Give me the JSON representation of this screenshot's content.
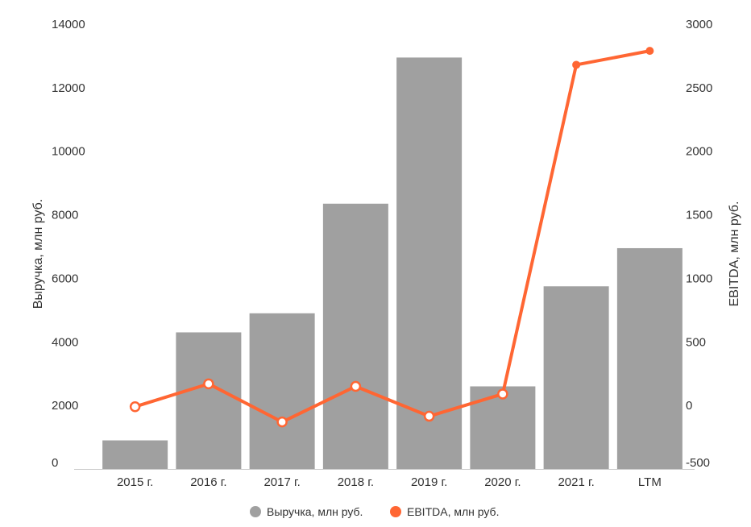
{
  "chart_data": {
    "type": "bar",
    "categories": [
      "2015 г.",
      "2016 г.",
      "2017 г.",
      "2018 г.",
      "2019 г.",
      "2020 г.",
      "2021 г.",
      "LTM"
    ],
    "series": [
      {
        "name": "Выручка, млн руб.",
        "type": "bar",
        "axis": "left",
        "color": "#a0a0a0",
        "values": [
          900,
          4300,
          4900,
          8350,
          12950,
          2600,
          5750,
          6950
        ]
      },
      {
        "name": "EBITDA, млн руб.",
        "type": "line",
        "axis": "right",
        "color": "#ff6633",
        "values": [
          -10,
          170,
          -130,
          150,
          -85,
          90,
          2680,
          2790
        ]
      }
    ],
    "ylabel": "Выручка, млн руб.",
    "y2label": "EBITDA, млн руб.",
    "ylim": [
      0,
      14000
    ],
    "y2lim": [
      -500,
      3000
    ],
    "yticks": [
      "0",
      "2000",
      "4000",
      "6000",
      "8000",
      "10000",
      "12000",
      "14000"
    ],
    "y2ticks": [
      "-500",
      "0",
      "500",
      "1000",
      "1500",
      "2000",
      "2500",
      "3000"
    ],
    "grid": false,
    "legend_position": "bottom"
  }
}
